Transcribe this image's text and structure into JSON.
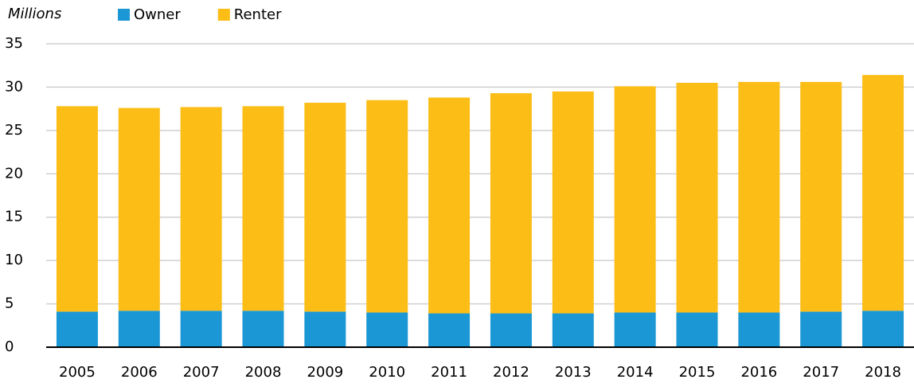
{
  "chart_data": {
    "type": "stacked_bar",
    "y_label": "Millions",
    "categories": [
      "2005",
      "2006",
      "2007",
      "2008",
      "2009",
      "2010",
      "2011",
      "2012",
      "2013",
      "2014",
      "2015",
      "2016",
      "2017",
      "2018"
    ],
    "series": [
      {
        "name": "Owner",
        "color": "#1a97d4",
        "values": [
          4.1,
          4.2,
          4.2,
          4.2,
          4.1,
          4.0,
          3.9,
          3.9,
          3.9,
          4.0,
          4.0,
          4.0,
          4.1,
          4.2
        ]
      },
      {
        "name": "Renter",
        "color": "#fbbd16",
        "values": [
          23.7,
          23.4,
          23.5,
          23.6,
          24.1,
          24.5,
          24.9,
          25.4,
          25.6,
          26.1,
          26.5,
          26.6,
          26.5,
          27.2
        ]
      }
    ],
    "ylim": [
      0,
      35
    ],
    "yticks": [
      0,
      5,
      10,
      15,
      20,
      25,
      30,
      35
    ],
    "grid": true
  }
}
